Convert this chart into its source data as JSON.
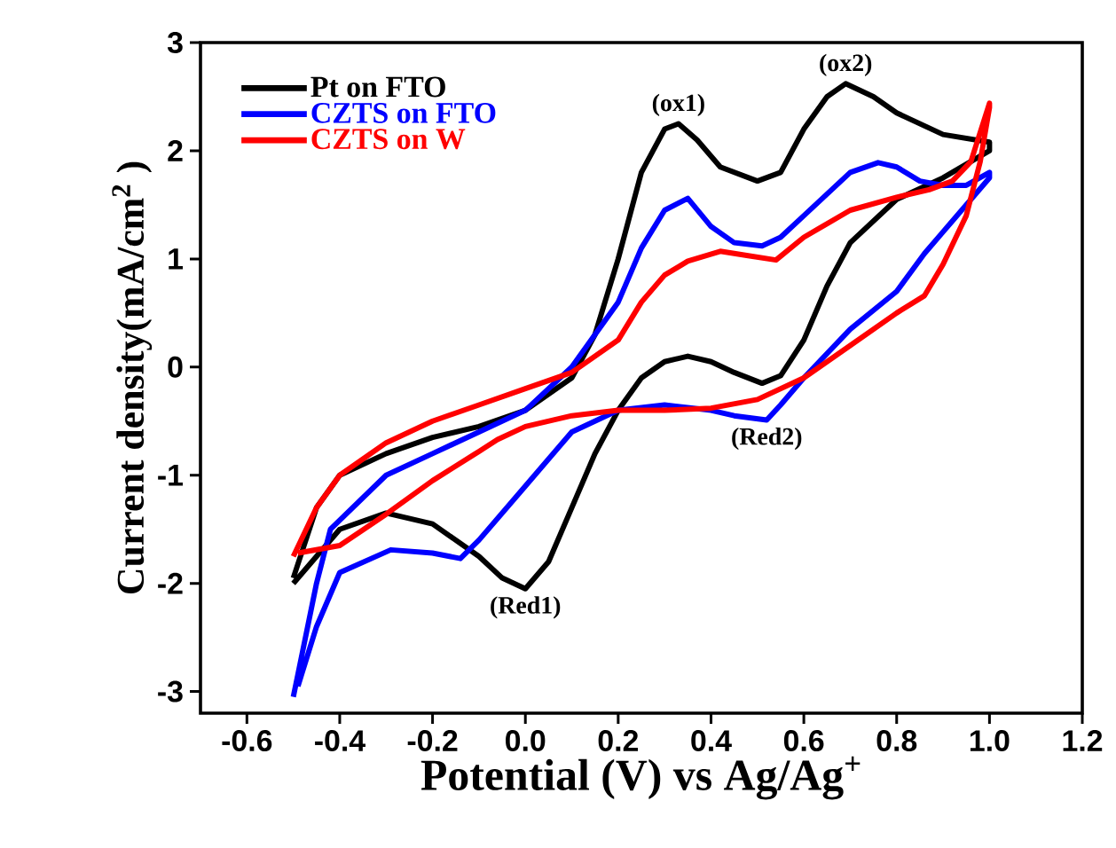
{
  "chart_data": {
    "type": "line",
    "xlabel": "Potential (V) vs Ag/Ag$^{+}$",
    "ylabel": "Current density(mA/cm$^{2}$ )",
    "xlim": [
      -0.7,
      1.2
    ],
    "ylim": [
      -3.2,
      3
    ],
    "xticks": [
      {
        "value": -0.6,
        "label": "-0.6"
      },
      {
        "value": -0.4,
        "label": "-0.4"
      },
      {
        "value": -0.2,
        "label": "-0.2"
      },
      {
        "value": 0,
        "label": "0.0"
      },
      {
        "value": 0.2,
        "label": "0.2"
      },
      {
        "value": 0.4,
        "label": "0.4"
      },
      {
        "value": 0.6,
        "label": "0.6"
      },
      {
        "value": 0.8,
        "label": "0.8"
      },
      {
        "value": 1.0,
        "label": "1.0"
      },
      {
        "value": 1.2,
        "label": "1.2"
      }
    ],
    "yticks": [
      -3,
      -2,
      -1,
      0,
      1,
      2,
      3
    ],
    "legend": "top left",
    "marker": "none",
    "line_style": "solid",
    "grid": false,
    "series": [
      {
        "name": "Pt on FTO",
        "color": "#000000",
        "x": [
          -0.5,
          -0.45,
          -0.4,
          -0.3,
          -0.2,
          -0.1,
          0,
          0.1,
          0.15,
          0.2,
          0.25,
          0.3,
          0.33,
          0.37,
          0.42,
          0.5,
          0.55,
          0.6,
          0.65,
          0.69,
          0.75,
          0.8,
          0.9,
          1.0,
          1.0,
          0.9,
          0.8,
          0.7,
          0.65,
          0.6,
          0.55,
          0.51,
          0.45,
          0.4,
          0.35,
          0.3,
          0.25,
          0.2,
          0.15,
          0.1,
          0.05,
          0,
          -0.05,
          -0.1,
          -0.2,
          -0.3,
          -0.4,
          -0.5
        ],
        "values": [
          -1.95,
          -1.3,
          -1.0,
          -0.8,
          -0.65,
          -0.55,
          -0.4,
          -0.1,
          0.3,
          1.0,
          1.8,
          2.2,
          2.25,
          2.1,
          1.85,
          1.72,
          1.8,
          2.2,
          2.5,
          2.62,
          2.5,
          2.35,
          2.15,
          2.08,
          2.0,
          1.75,
          1.55,
          1.15,
          0.75,
          0.25,
          -0.08,
          -0.15,
          -0.05,
          0.05,
          0.1,
          0.05,
          -0.1,
          -0.4,
          -0.8,
          -1.3,
          -1.8,
          -2.05,
          -1.95,
          -1.75,
          -1.45,
          -1.35,
          -1.5,
          -2.0
        ]
      },
      {
        "name": "CZTS on FTO",
        "color": "#0000ff",
        "x": [
          -0.5,
          -0.45,
          -0.42,
          -0.3,
          -0.2,
          -0.1,
          0,
          0.1,
          0.2,
          0.25,
          0.3,
          0.35,
          0.4,
          0.45,
          0.51,
          0.55,
          0.6,
          0.7,
          0.76,
          0.8,
          0.85,
          0.9,
          0.95,
          1.0,
          1.0,
          0.9,
          0.86,
          0.8,
          0.7,
          0.6,
          0.55,
          0.52,
          0.45,
          0.4,
          0.3,
          0.2,
          0.1,
          0,
          -0.1,
          -0.14,
          -0.2,
          -0.29,
          -0.4,
          -0.45,
          -0.49
        ],
        "values": [
          -3.05,
          -2.0,
          -1.5,
          -1.0,
          -0.8,
          -0.6,
          -0.4,
          0.0,
          0.6,
          1.1,
          1.45,
          1.56,
          1.3,
          1.15,
          1.12,
          1.2,
          1.4,
          1.8,
          1.89,
          1.85,
          1.72,
          1.68,
          1.68,
          1.8,
          1.75,
          1.25,
          1.05,
          0.7,
          0.35,
          -0.1,
          -0.35,
          -0.49,
          -0.45,
          -0.4,
          -0.35,
          -0.4,
          -0.6,
          -1.1,
          -1.6,
          -1.77,
          -1.72,
          -1.69,
          -1.9,
          -2.4,
          -2.95
        ]
      },
      {
        "name": "CZTS on W",
        "color": "#ff0000",
        "x": [
          -0.5,
          -0.45,
          -0.4,
          -0.3,
          -0.2,
          -0.1,
          0,
          0.1,
          0.2,
          0.25,
          0.3,
          0.35,
          0.42,
          0.48,
          0.54,
          0.6,
          0.7,
          0.8,
          0.87,
          0.92,
          0.96,
          1.0,
          1.0,
          0.98,
          0.95,
          0.9,
          0.86,
          0.8,
          0.7,
          0.6,
          0.5,
          0.4,
          0.3,
          0.2,
          0.1,
          0,
          -0.06,
          -0.1,
          -0.2,
          -0.3,
          -0.4,
          -0.49
        ],
        "values": [
          -1.75,
          -1.3,
          -1.0,
          -0.7,
          -0.5,
          -0.35,
          -0.2,
          -0.05,
          0.25,
          0.6,
          0.85,
          0.98,
          1.07,
          1.03,
          0.99,
          1.2,
          1.45,
          1.57,
          1.64,
          1.72,
          1.9,
          2.44,
          2.4,
          1.9,
          1.4,
          0.95,
          0.66,
          0.5,
          0.2,
          -0.1,
          -0.3,
          -0.38,
          -0.4,
          -0.4,
          -0.45,
          -0.55,
          -0.67,
          -0.78,
          -1.05,
          -1.36,
          -1.65,
          -1.72
        ]
      }
    ],
    "annotations": [
      {
        "text": "(ox1)",
        "x": 0.33,
        "y": 2.25
      },
      {
        "text": "(ox2)",
        "x": 0.69,
        "y": 2.62
      },
      {
        "text": "(Red1)",
        "x": 0,
        "y": -2.05
      },
      {
        "text": "(Red2)",
        "x": 0.52,
        "y": -0.49
      }
    ]
  }
}
